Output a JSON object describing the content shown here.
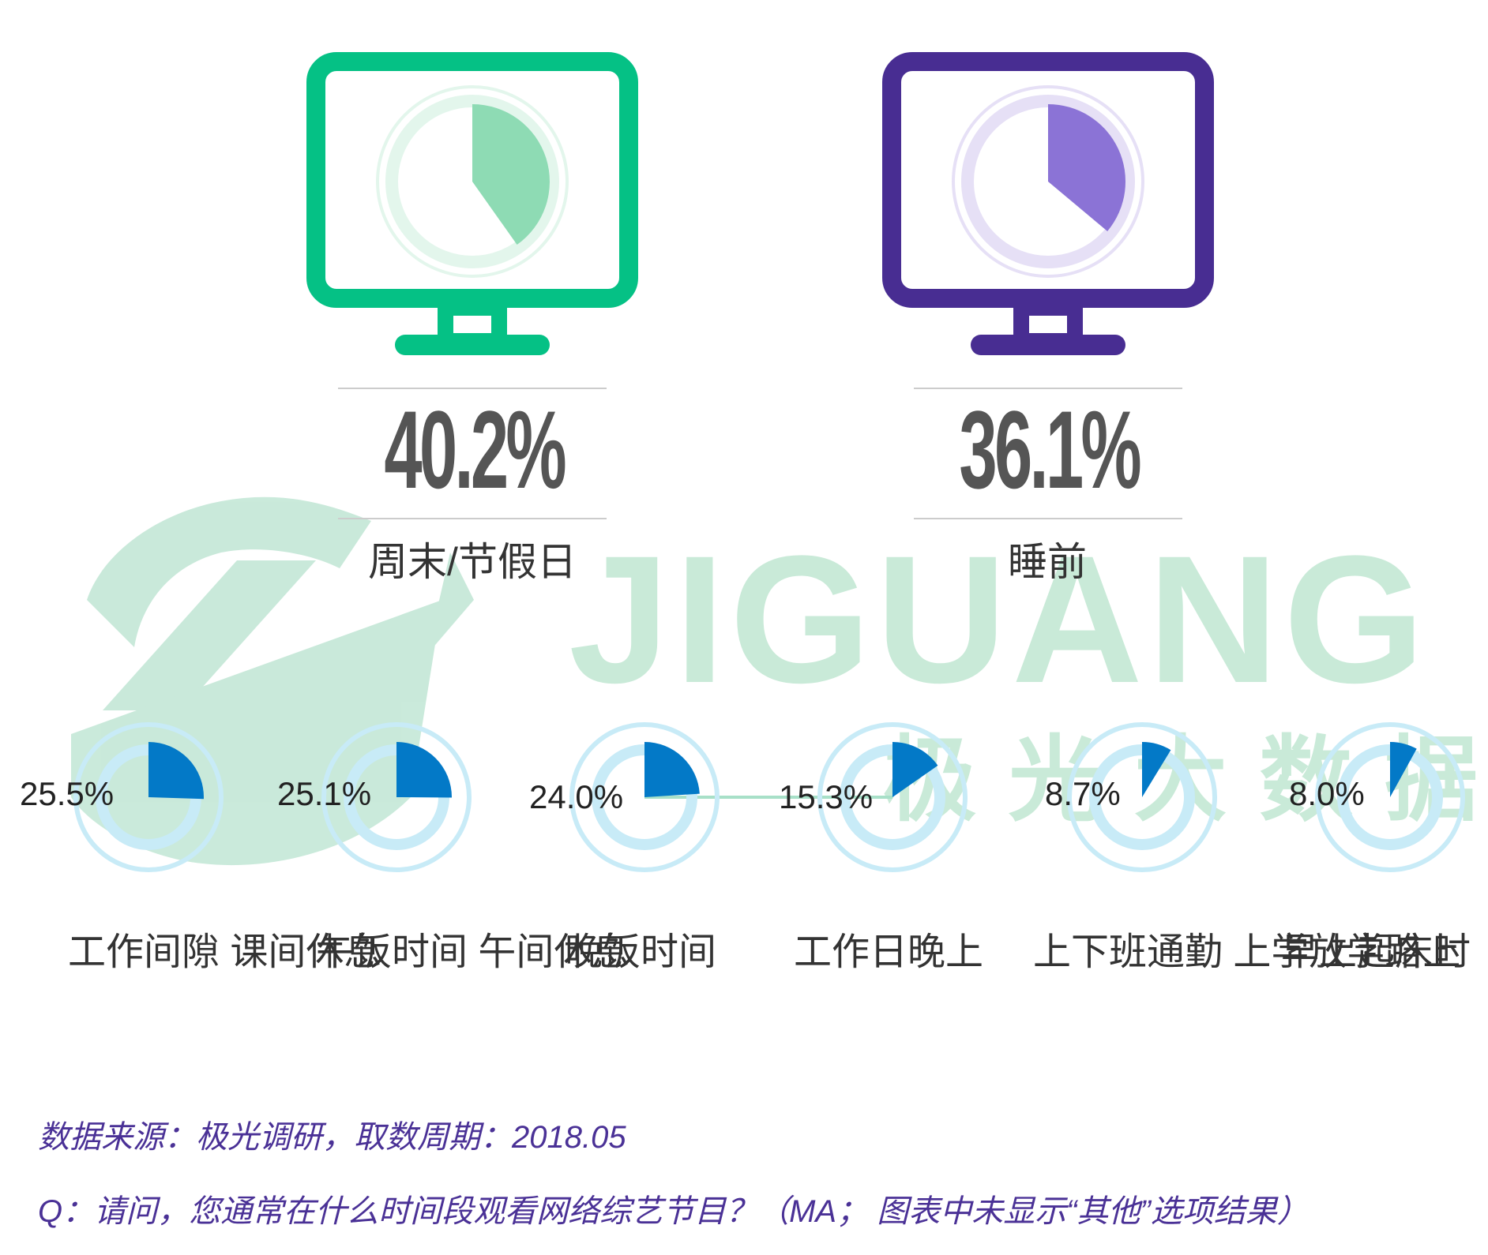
{
  "colors": {
    "green": "#05c185",
    "green_light": "#8edbb4",
    "purple": "#482d92",
    "purple_light": "#8b73d6",
    "blue": "#0379c7",
    "blue_ring": "#c8ebf7",
    "text_dark": "#333333",
    "footnote": "#4a3196",
    "watermark": "#c9ead8"
  },
  "watermark": {
    "word": "JIGUANG",
    "cn": "极 光 大 数 据"
  },
  "chart_data": [
    {
      "type": "pie",
      "title": "",
      "categories": [
        "周末/节假日",
        "睡前"
      ],
      "values": [
        40.2,
        36.1
      ],
      "value_labels": [
        "40.2%",
        "36.1%"
      ],
      "icon": "monitor-icon"
    },
    {
      "type": "pie",
      "title": "",
      "categories": [
        "工作间隙\n课间休息",
        "午饭时间\n午间休息",
        "晚饭时间",
        "工作日晚上",
        "上下班通勤\n上学放学路上",
        "早上起床时"
      ],
      "values": [
        25.5,
        25.1,
        24.0,
        15.3,
        8.7,
        8.0
      ],
      "value_labels": [
        "25.5%",
        "25.1%",
        "24.0%",
        "15.3%",
        "8.7%",
        "8.0%"
      ]
    }
  ],
  "footnotes": {
    "source": "数据来源：极光调研，取数周期：2018.05",
    "question": "Q：请问，您通常在什么时间段观看网络综艺节目？（MA；  图表中未显示“其他”选项结果）"
  }
}
